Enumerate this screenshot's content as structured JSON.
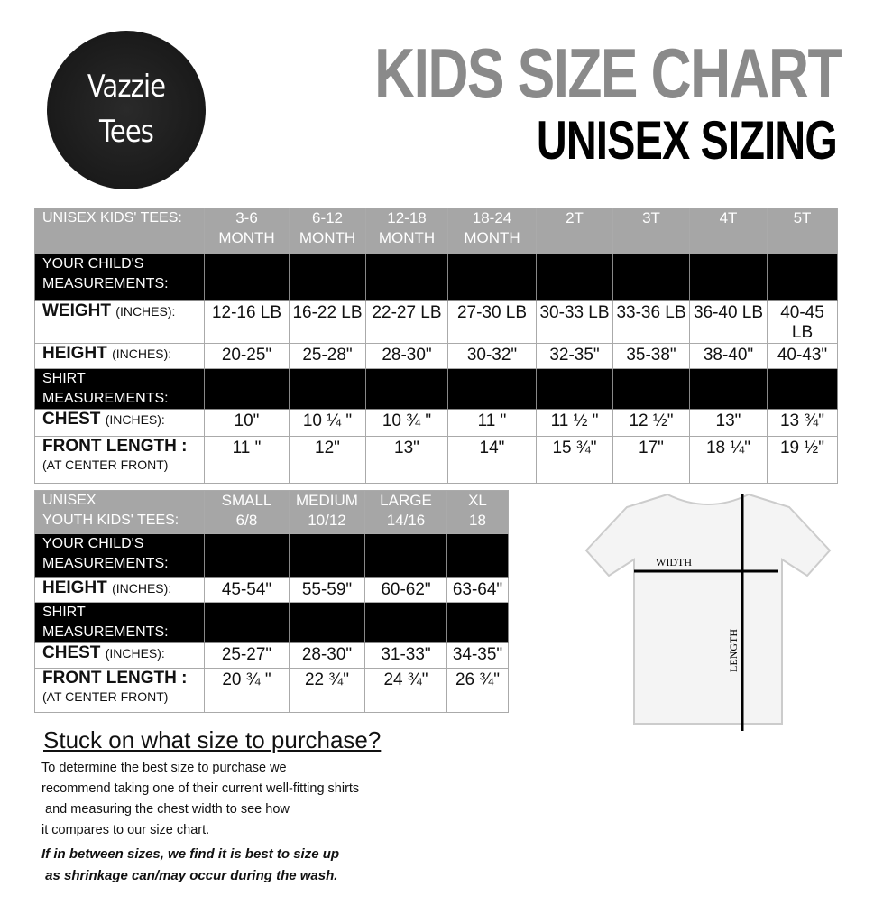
{
  "logo": {
    "line1": "Vazzie",
    "line2": "Tees"
  },
  "title": "KIDS SIZE CHART",
  "subtitle": "UNISEX SIZING",
  "table1": {
    "header": {
      "label": "UNISEX KIDS' TEES:",
      "sizes": [
        "3-6\nMONTH",
        "6-12\nMONTH",
        "12-18\nMONTH",
        "18-24\nMONTH",
        "2T",
        "3T",
        "4T",
        "5T"
      ]
    },
    "rows": [
      {
        "type": "black",
        "label": "YOUR CHILD'S MEASUREMENTS:"
      },
      {
        "type": "data",
        "label": "WEIGHT",
        "unit": "(INCHES):",
        "values": [
          "12-16 LB",
          "16-22 LB",
          "22-27 LB",
          "27-30 LB",
          "30-33 LB",
          "33-36 LB",
          "36-40 LB",
          "40-45 LB"
        ]
      },
      {
        "type": "data",
        "label": "HEIGHT",
        "unit": "(INCHES):",
        "values": [
          "20-25\"",
          "25-28\"",
          "28-30\"",
          "30-32\"",
          "32-35\"",
          "35-38\"",
          "38-40\"",
          "40-43\""
        ]
      },
      {
        "type": "black",
        "label": "SHIRT MEASUREMENTS:"
      },
      {
        "type": "data",
        "label": "CHEST",
        "unit": "(INCHES):",
        "values": [
          "10\"",
          "10 ¼ \"",
          "10 ¾ \"",
          "11 \"",
          "11 ½ \"",
          "12 ½\"",
          "13\"",
          "13 ¾\""
        ]
      },
      {
        "type": "data",
        "label": "FRONT LENGTH :",
        "sub": "(AT CENTER FRONT)",
        "values": [
          "11 \"",
          "12\"",
          "13\"",
          "14\"",
          "15 ¾\"",
          "17\"",
          "18 ¼\"",
          "19 ½\""
        ]
      }
    ]
  },
  "table2": {
    "header": {
      "label": "UNISEX\nYOUTH KIDS' TEES:",
      "sizes": [
        "SMALL\n6/8",
        "MEDIUM\n10/12",
        "LARGE\n14/16",
        "XL\n18"
      ]
    },
    "rows": [
      {
        "type": "black",
        "label": "YOUR CHILD'S MEASUREMENTS:"
      },
      {
        "type": "data",
        "label": "HEIGHT",
        "unit": "(INCHES):",
        "values": [
          "45-54\"",
          "55-59\"",
          "60-62\"",
          "63-64\""
        ]
      },
      {
        "type": "black",
        "label": "SHIRT MEASUREMENTS:"
      },
      {
        "type": "data",
        "label": "CHEST",
        "unit": "(INCHES):",
        "values": [
          "25-27\"",
          "28-30\"",
          "31-33\"",
          "34-35\""
        ]
      },
      {
        "type": "data",
        "label": "FRONT LENGTH :",
        "sub": "(AT CENTER FRONT)",
        "values": [
          "20 ¾ \"",
          "22 ¾\"",
          "24 ¾\"",
          "26 ¾\""
        ]
      }
    ]
  },
  "diagram": {
    "width_label": "WIDTH",
    "length_label": "LENGTH"
  },
  "help": {
    "heading": "Stuck on what size to purchase?",
    "body": "To determine the best size to purchase we\nrecommend taking one of their current well-fitting shirts\n and measuring the chest width to see how\nit compares to our size chart.",
    "note": "If in between sizes, we find it is best to size up\n as shrinkage can/may occur during the wash."
  }
}
